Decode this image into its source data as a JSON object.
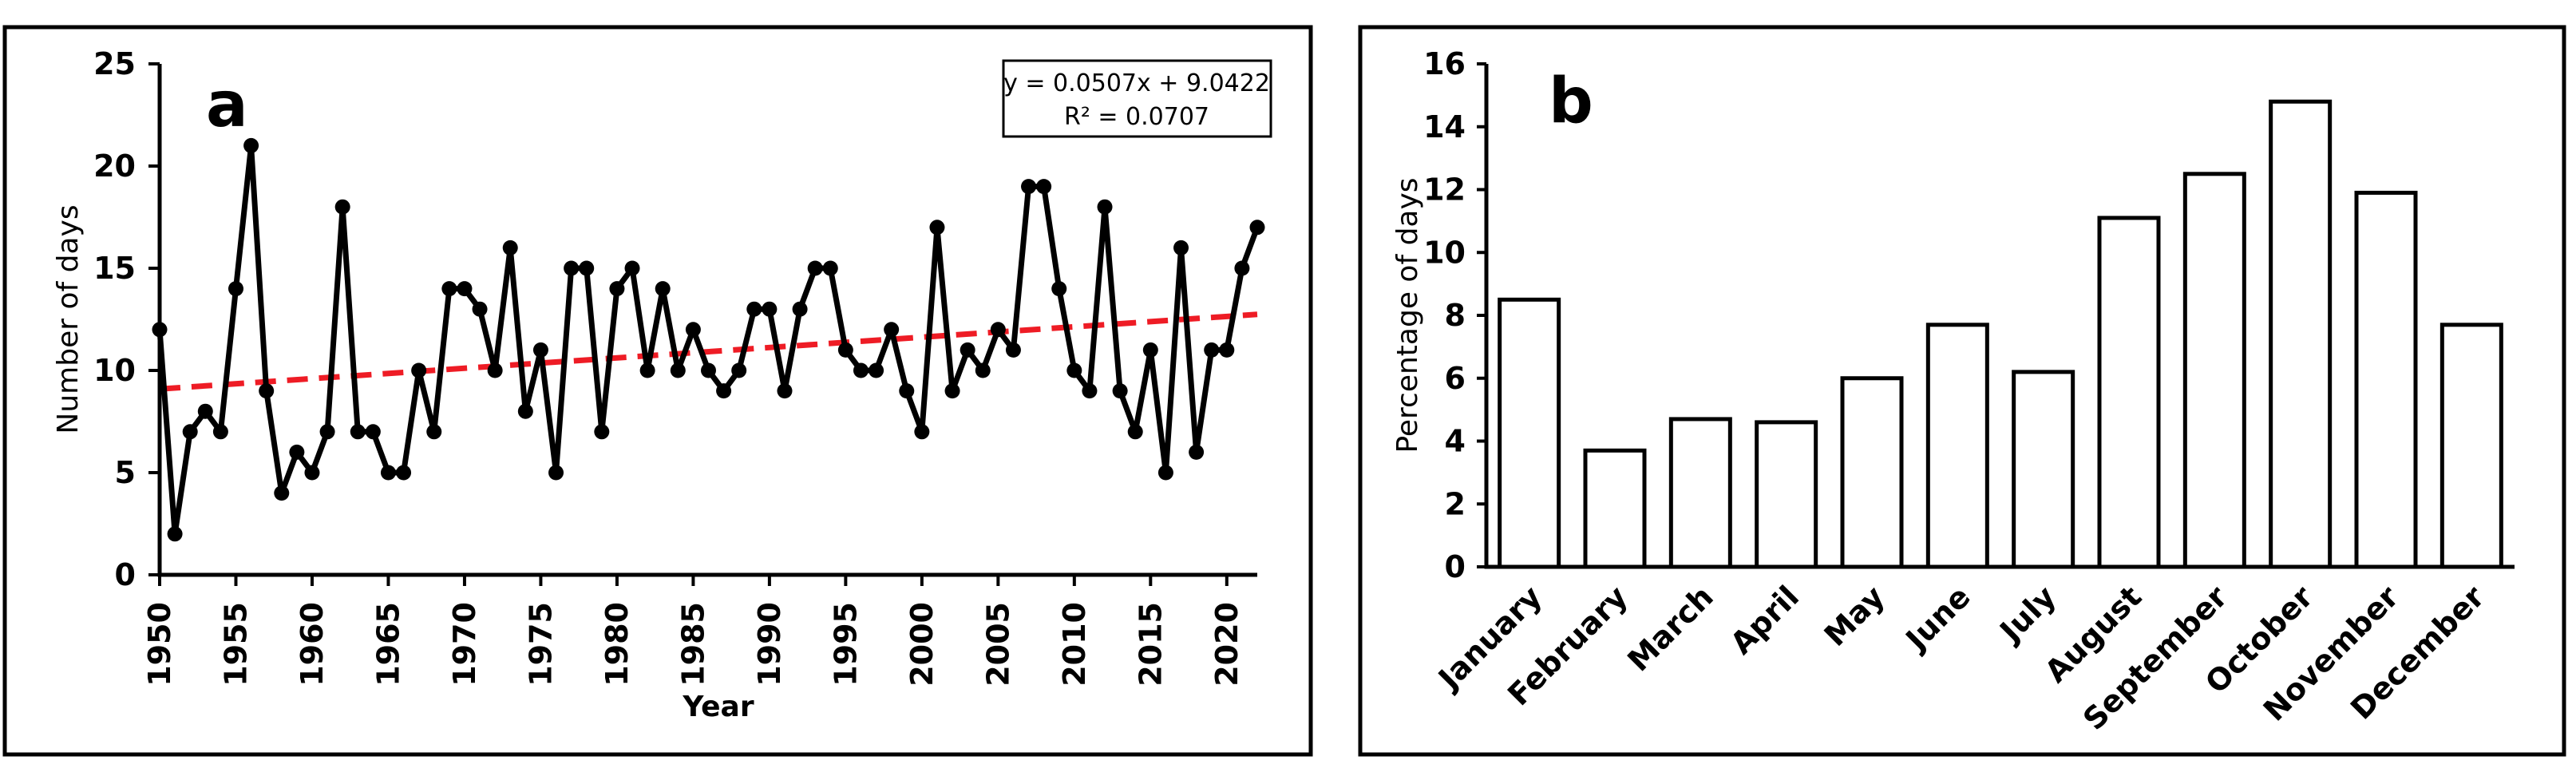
{
  "chart_data": [
    {
      "type": "line",
      "panel_label": "a",
      "xlabel": "Year",
      "ylabel": "Number of days",
      "xlim": [
        1950,
        2022
      ],
      "ylim": [
        0,
        25
      ],
      "yticks": [
        0,
        5,
        10,
        15,
        20,
        25
      ],
      "xticks": [
        1950,
        1955,
        1960,
        1965,
        1970,
        1975,
        1980,
        1985,
        1990,
        1995,
        2000,
        2005,
        2010,
        2015,
        2020
      ],
      "grid": false,
      "series": [
        {
          "name": "Number of days",
          "color": "#000000",
          "x": [
            1950,
            1951,
            1952,
            1953,
            1954,
            1955,
            1956,
            1957,
            1958,
            1959,
            1960,
            1961,
            1962,
            1963,
            1964,
            1965,
            1966,
            1967,
            1968,
            1969,
            1970,
            1971,
            1972,
            1973,
            1974,
            1975,
            1976,
            1977,
            1978,
            1979,
            1980,
            1981,
            1982,
            1983,
            1984,
            1985,
            1986,
            1987,
            1988,
            1989,
            1990,
            1991,
            1992,
            1993,
            1994,
            1995,
            1996,
            1997,
            1998,
            1999,
            2000,
            2001,
            2002,
            2003,
            2004,
            2005,
            2006,
            2007,
            2008,
            2009,
            2010,
            2011,
            2012,
            2013,
            2014,
            2015,
            2016,
            2017,
            2018,
            2019,
            2020,
            2021,
            2022
          ],
          "values": [
            12,
            2,
            7,
            8,
            7,
            14,
            21,
            9,
            4,
            6,
            5,
            7,
            18,
            7,
            7,
            5,
            5,
            10,
            7,
            14,
            14,
            13,
            10,
            16,
            8,
            11,
            5,
            15,
            15,
            7,
            14,
            15,
            10,
            14,
            10,
            12,
            10,
            9,
            10,
            13,
            13,
            9,
            13,
            15,
            15,
            11,
            10,
            10,
            12,
            9,
            7,
            17,
            9,
            11,
            10,
            12,
            11,
            19,
            19,
            14,
            10,
            9,
            18,
            9,
            7,
            11,
            5,
            16,
            6,
            11,
            11,
            15,
            17
          ]
        }
      ],
      "trendline": {
        "slope": 0.0507,
        "intercept": 9.0422,
        "color": "#ee1c25",
        "equation_label": "y = 0.0507x + 9.0422",
        "r2_label": "R² = 0.0707"
      }
    },
    {
      "type": "bar",
      "panel_label": "b",
      "xlabel": "",
      "ylabel": "Percentage of days",
      "ylim": [
        0,
        16
      ],
      "yticks": [
        0,
        2,
        4,
        6,
        8,
        10,
        12,
        14,
        16
      ],
      "grid": false,
      "categories": [
        "January",
        "February",
        "March",
        "April",
        "May",
        "June",
        "July",
        "August",
        "September",
        "October",
        "November",
        "December"
      ],
      "values": [
        8.5,
        3.7,
        4.7,
        4.6,
        6.0,
        7.7,
        6.2,
        11.1,
        12.5,
        14.8,
        11.9,
        7.7
      ]
    }
  ]
}
